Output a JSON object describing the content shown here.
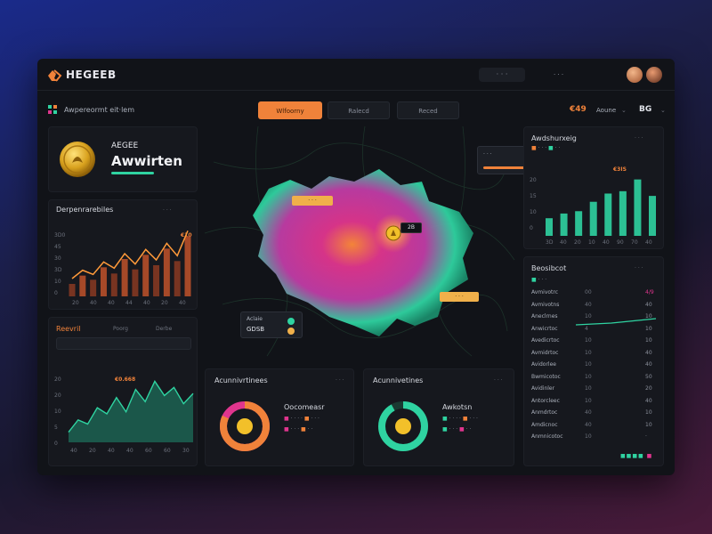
{
  "app": {
    "name": "HEGEEB",
    "top_pill": "· · ·",
    "top_user": "· · ·"
  },
  "subbar": {
    "title": "Awpereormt eit·lem",
    "tabs": [
      {
        "label": "Wlfoorny",
        "active": true
      },
      {
        "label": "Ralecd",
        "active": false
      },
      {
        "label": "Reced",
        "active": false
      }
    ],
    "right_value": "€49",
    "right_label": "Aoune",
    "right_short": "BG"
  },
  "award_card": {
    "small_title": "AEGEE",
    "title": "Awwirten"
  },
  "bar_chart_left": {
    "title": "Derpenrarebiles",
    "peak_label": "€10",
    "y_ticks": [
      "3D0",
      "45",
      "30",
      "3D",
      "10",
      "0"
    ],
    "x_ticks": [
      "20",
      "40",
      "40",
      "44",
      "40",
      "20",
      "40"
    ]
  },
  "area_chart_left": {
    "title": "Reevril",
    "filter_a": "Poorg",
    "filter_b": "Derbe",
    "peak_label": "€0.668",
    "y_ticks": [
      "20",
      "20",
      "10",
      "5",
      "0"
    ],
    "x_ticks": [
      "40",
      "20",
      "40",
      "40",
      "60",
      "60",
      "30"
    ]
  },
  "map": {
    "callout_title": "·",
    "center_label": "2B",
    "label_nw": "· · ·",
    "label_se": "· · ·",
    "info_box_label": "· · ·",
    "info_box_value": "· · ·",
    "mini_label": "Aclaie",
    "mini_value": "GDSB"
  },
  "donut_left": {
    "title": "Acunnivrtinees",
    "subtitle": "Oocomeasr",
    "pct": 0.82
  },
  "donut_right": {
    "title": "Acunnivetines",
    "subtitle": "Awkotsn",
    "pct": 0.92
  },
  "bar_chart_right": {
    "title": "Awdshurxeig",
    "peak_label": "€3IS",
    "values": [
      30,
      38,
      42,
      58,
      72,
      76,
      96,
      68
    ],
    "y_ticks": [
      "20",
      "15",
      "10",
      "0"
    ],
    "x_ticks": [
      "3D",
      "40",
      "20",
      "10",
      "40",
      "90",
      "70",
      "40"
    ]
  },
  "table_right": {
    "title": "Beosibcot",
    "rows": [
      {
        "label": "Avmivotrc",
        "a": "00",
        "b": "4/9"
      },
      {
        "label": "Avmivotns",
        "a": "40",
        "b": "40"
      },
      {
        "label": "Aneclrnes",
        "a": "10",
        "b": "10"
      },
      {
        "label": "Anwicrtoc",
        "a": "4",
        "b": "10"
      },
      {
        "label": "Avedicrtoc",
        "a": "10",
        "b": "10"
      },
      {
        "label": "Avmidrtoc",
        "a": "10",
        "b": "40"
      },
      {
        "label": "Avidorlee",
        "a": "10",
        "b": "40"
      },
      {
        "label": "Bwmicotoc",
        "a": "10",
        "b": "50"
      },
      {
        "label": "Avidinler",
        "a": "10",
        "b": "20"
      },
      {
        "label": "Antorcleec",
        "a": "10",
        "b": "40"
      },
      {
        "label": "Anmdrtoc",
        "a": "40",
        "b": "10"
      },
      {
        "label": "Amdicnoc",
        "a": "40",
        "b": "10"
      },
      {
        "label": "Anmnicotoc",
        "a": "10",
        "b": "·"
      }
    ]
  },
  "colors": {
    "accent": "#f0823a",
    "teal": "#2fd3a1",
    "magenta": "#e0358e",
    "panel": "#16181e"
  }
}
